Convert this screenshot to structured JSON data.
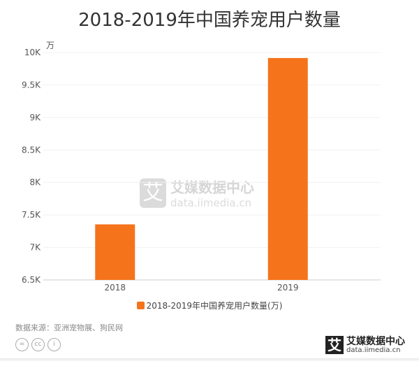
{
  "chart_data": {
    "type": "bar",
    "title": "2018-2019年中国养宠用户数量",
    "categories": [
      "2018",
      "2019"
    ],
    "series": [
      {
        "name": "2018-2019年中国养宠用户数量(万)",
        "values": [
          7355,
          9915
        ],
        "color": "#f5731b"
      }
    ],
    "ylabel": "万",
    "ylim": [
      6500,
      10000
    ],
    "yticks": [
      6500,
      7000,
      7500,
      8000,
      8500,
      9000,
      9500,
      10000
    ],
    "ytick_labels": [
      "6.5K",
      "7K",
      "7.5K",
      "8K",
      "8.5K",
      "9K",
      "9.5K",
      "10K"
    ],
    "grid": true,
    "legend": "bottom-center"
  },
  "source": "数据来源：亚洲宠物展、狗民网",
  "license_icons": [
    "=",
    "cc",
    "i"
  ],
  "brand": {
    "mark": "艾",
    "name": "艾媒数据中心",
    "url": "data.iimedia.cn"
  }
}
